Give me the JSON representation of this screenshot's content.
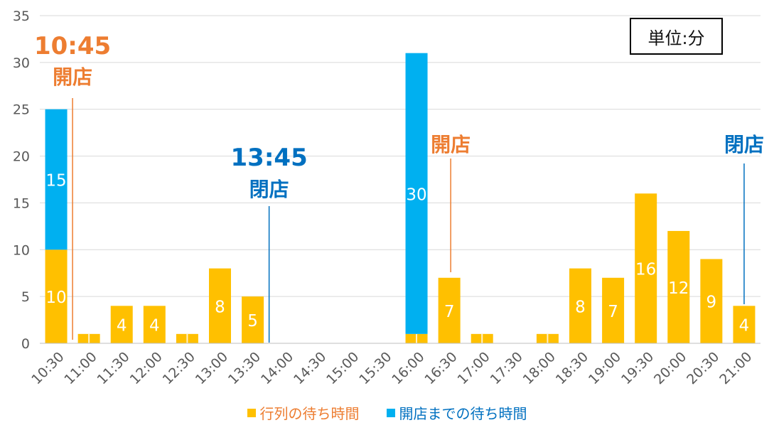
{
  "unit_label": "単位:分",
  "colors": {
    "queue": "#FFC000",
    "open": "#00B0F0",
    "orange_text": "#ED7D31",
    "blue_text": "#0070C0",
    "grid": "#D9D9D9",
    "axis_text": "#595959"
  },
  "legend": [
    {
      "label": "行列の待ち時間",
      "color": "#FFC000",
      "text_color": "#ED7D31"
    },
    {
      "label": "開店までの待ち時間",
      "color": "#00B0F0",
      "text_color": "#0070C0"
    }
  ],
  "annotations": [
    {
      "time": "10:45",
      "label": "開店",
      "color": "#ED7D31"
    },
    {
      "time": "13:45",
      "label": "閉店",
      "color": "#0070C0"
    },
    {
      "time": "",
      "label": "開店",
      "color": "#ED7D31"
    },
    {
      "time": "",
      "label": "閉店",
      "color": "#0070C0"
    }
  ],
  "chart_data": {
    "type": "bar",
    "stacked": true,
    "categories": [
      "10:30",
      "11:00",
      "11:30",
      "12:00",
      "12:30",
      "13:00",
      "13:30",
      "14:00",
      "14:30",
      "15:00",
      "15:30",
      "16:00",
      "16:30",
      "17:00",
      "17:30",
      "18:00",
      "18:30",
      "19:00",
      "19:30",
      "20:00",
      "20:30",
      "21:00"
    ],
    "series": [
      {
        "name": "行列の待ち時間",
        "color": "#FFC000",
        "values": [
          10,
          1,
          4,
          4,
          1,
          8,
          5,
          0,
          0,
          0,
          0,
          1,
          7,
          1,
          0,
          1,
          8,
          7,
          16,
          12,
          9,
          4
        ]
      },
      {
        "name": "開店までの待ち時間",
        "color": "#00B0F0",
        "values": [
          15,
          0,
          0,
          0,
          0,
          0,
          0,
          0,
          0,
          0,
          0,
          30,
          0,
          0,
          0,
          0,
          0,
          0,
          0,
          0,
          0,
          0
        ]
      }
    ],
    "ylim": [
      0,
      35
    ],
    "yticks": [
      0,
      5,
      10,
      15,
      20,
      25,
      30,
      35
    ],
    "grid": true,
    "legend_position": "bottom"
  }
}
